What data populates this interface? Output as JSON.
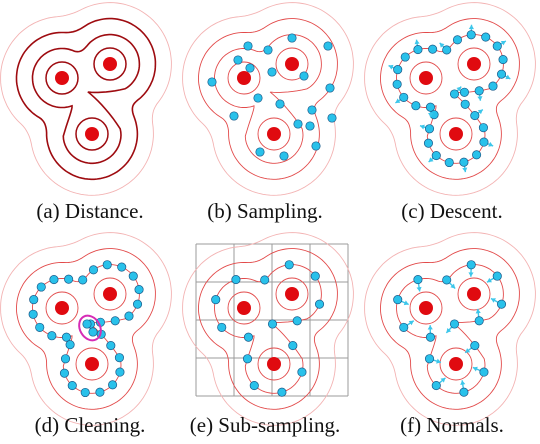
{
  "colors": {
    "field_outer": "#f3b3b3",
    "field_mid": "#e24a4a",
    "field_dark": "#9e0b10",
    "source": "#e00a10",
    "sample_fill": "#29c1ea",
    "sample_stroke": "#1a5a8a",
    "arrow": "#3cc6ea",
    "highlight": "#d62cb6",
    "grid": "#9b9b9b"
  },
  "panels": [
    {
      "id": "a",
      "caption": "(a) Distance.",
      "style": "distance"
    },
    {
      "id": "b",
      "caption": "(b) Sampling.",
      "style": "sampling"
    },
    {
      "id": "c",
      "caption": "(c) Descent.",
      "style": "descent"
    },
    {
      "id": "d",
      "caption": "(d) Cleaning.",
      "style": "cleaning"
    },
    {
      "id": "e",
      "caption": "(e) Sub-sampling.",
      "style": "subsampling"
    },
    {
      "id": "f",
      "caption": "(f) Normals.",
      "style": "normals"
    }
  ]
}
